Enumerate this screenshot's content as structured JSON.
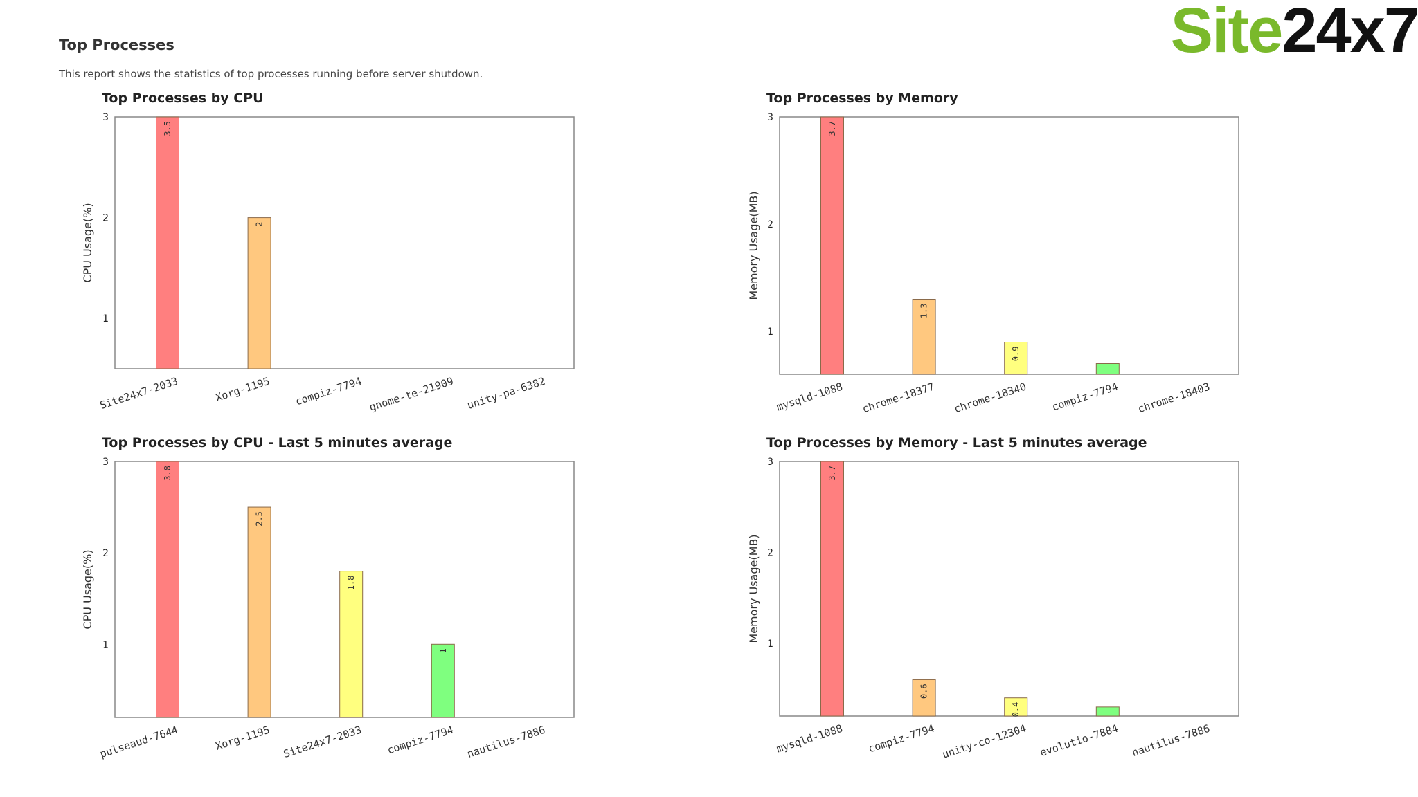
{
  "logo": {
    "part1": "Site",
    "part2": "24x7"
  },
  "report": {
    "title": "Top Processes",
    "description": "This report shows the statistics of top processes running before server shutdown."
  },
  "colors": [
    "#ff7f7f",
    "#ffc87f",
    "#ffff7f",
    "#7fff7f",
    "#7fffff"
  ],
  "chart_data": [
    {
      "type": "bar",
      "title": "Top Processes by CPU",
      "ylabel": "CPU Usage(%)",
      "xlabel": "",
      "ylim": [
        0.5,
        3
      ],
      "yticks": [
        "1",
        "2",
        "3"
      ],
      "categories": [
        "Site24x7-2033",
        "Xorg-1195",
        "compiz-7794",
        "gnome-te-21909",
        "unity-pa-6382"
      ],
      "values": [
        3.5,
        2,
        null,
        null,
        null
      ],
      "value_labels": [
        "3.5",
        "2",
        "",
        "",
        ""
      ]
    },
    {
      "type": "bar",
      "title": "Top Processes by Memory",
      "ylabel": "Memory Usage(MB)",
      "xlabel": "",
      "ylim": [
        0.6,
        3
      ],
      "yticks": [
        "1",
        "2",
        "3"
      ],
      "categories": [
        "mysqld-1088",
        "chrome-18377",
        "chrome-18340",
        "compiz-7794",
        "chrome-18403"
      ],
      "values": [
        3.7,
        1.3,
        0.9,
        0.7,
        null
      ],
      "value_labels": [
        "3.7",
        "1.3",
        "0.9",
        "",
        ""
      ]
    },
    {
      "type": "bar",
      "title": "Top Processes by CPU - Last 5 minutes average",
      "ylabel": "CPU Usage(%)",
      "xlabel": "",
      "ylim": [
        0.2,
        3
      ],
      "yticks": [
        "1",
        "2",
        "3"
      ],
      "categories": [
        "pulseaud-7644",
        "Xorg-1195",
        "Site24x7-2033",
        "compiz-7794",
        "nautilus-7886"
      ],
      "values": [
        3.8,
        2.5,
        1.8,
        1,
        null
      ],
      "value_labels": [
        "3.8",
        "2.5",
        "1.8",
        "1",
        ""
      ]
    },
    {
      "type": "bar",
      "title": "Top Processes by Memory - Last 5 minutes average",
      "ylabel": "Memory Usage(MB)",
      "xlabel": "",
      "ylim": [
        0.2,
        3
      ],
      "yticks": [
        "1",
        "2",
        "3"
      ],
      "categories": [
        "mysqld-1088",
        "compiz-7794",
        "unity-co-12304",
        "evolutio-7884",
        "nautilus-7886"
      ],
      "values": [
        3.7,
        0.6,
        0.4,
        0.3,
        null
      ],
      "value_labels": [
        "3.7",
        "0.6",
        "0.4",
        "",
        ""
      ]
    }
  ]
}
